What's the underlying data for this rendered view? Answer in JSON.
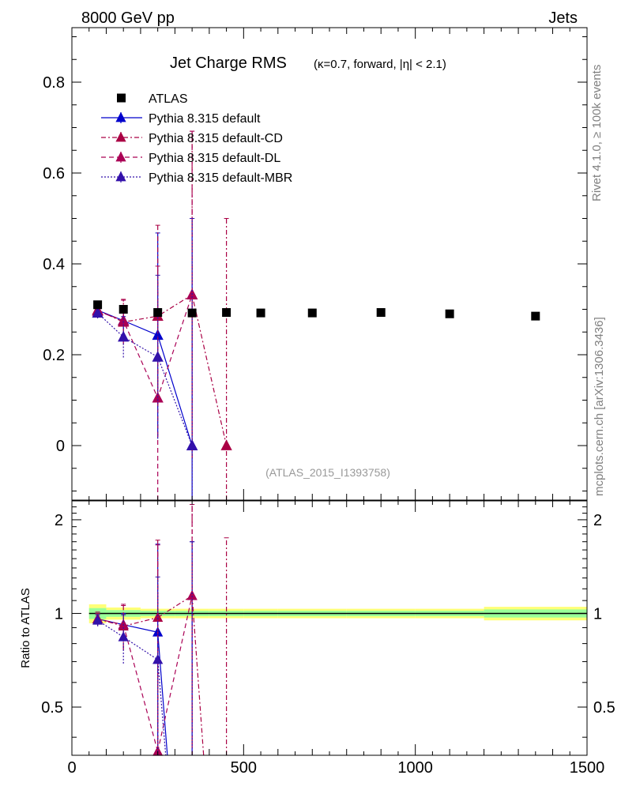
{
  "header": {
    "left": "8000 GeV pp",
    "right": "Jets"
  },
  "side_text": {
    "rivet": "Rivet 4.1.0, ≥ 100k events",
    "mcplots": "mcplots.cern.ch [arXiv:1306.3436]"
  },
  "chart_data": {
    "type": "scatter",
    "title": "Jet Charge RMS",
    "subtitle": "(κ=0.7, forward, |η| < 2.1)",
    "analysis_label": "(ATLAS_2015_I1393758)",
    "xlabel": "",
    "ylabel": "",
    "ratio_ylabel": "Ratio to ATLAS",
    "xlim": [
      0,
      1500
    ],
    "ylim": [
      -0.12,
      0.92
    ],
    "ratio_ylim": [
      0.35,
      2.3
    ],
    "x_ticks": [
      0,
      500,
      1000,
      1500
    ],
    "y_ticks": [
      0,
      0.2,
      0.4,
      0.6,
      0.8
    ],
    "ratio_ticks": [
      0.5,
      1,
      2
    ],
    "ratio_reference": 1,
    "data": {
      "name": "ATLAS",
      "color": "#000000",
      "x": [
        75,
        150,
        250,
        350,
        450,
        550,
        700,
        900,
        1100,
        1350
      ],
      "y": [
        0.31,
        0.3,
        0.293,
        0.292,
        0.293,
        0.292,
        0.292,
        0.293,
        0.29,
        0.285
      ],
      "bin_edges": [
        50,
        100,
        200,
        300,
        400,
        500,
        600,
        800,
        1000,
        1200,
        1500
      ],
      "band_inner": [
        0.04,
        0.025,
        0.02,
        0.02,
        0.02,
        0.02,
        0.02,
        0.02,
        0.02,
        0.03
      ],
      "band_outer": [
        0.07,
        0.045,
        0.035,
        0.035,
        0.035,
        0.035,
        0.035,
        0.035,
        0.035,
        0.05
      ]
    },
    "series": [
      {
        "name": "Pythia 8.315 default",
        "color": "#0000cc",
        "dash": "solid",
        "x": [
          75,
          150,
          250,
          350
        ],
        "y": [
          0.298,
          0.275,
          0.243,
          0.0
        ],
        "yerr": [
          0.01,
          0.02,
          0.225,
          0.5
        ],
        "ratio": [
          0.96,
          0.92,
          0.87,
          0.0
        ],
        "ratio_err": [
          0.04,
          0.08,
          0.8,
          1.7
        ]
      },
      {
        "name": "Pythia 8.315 default-CD",
        "color": "#aa0044",
        "dash": "dashdot",
        "x": [
          75,
          150,
          250,
          350,
          450
        ],
        "y": [
          0.298,
          0.272,
          0.285,
          0.332,
          0.0
        ],
        "yerr": [
          0.012,
          0.05,
          0.2,
          0.36,
          0.5
        ],
        "ratio": [
          0.96,
          0.91,
          0.97,
          1.14,
          0.0
        ],
        "ratio_err": [
          0.04,
          0.15,
          0.75,
          1.1,
          1.75
        ]
      },
      {
        "name": "Pythia 8.315 default-DL",
        "color": "#aa0055",
        "dash": "dashed",
        "x": [
          75,
          150,
          250,
          350
        ],
        "y": [
          0.296,
          0.275,
          0.105,
          0.332
        ],
        "yerr": [
          0.012,
          0.045,
          0.29,
          0.36
        ],
        "ratio": [
          0.96,
          0.92,
          0.36,
          1.14
        ],
        "ratio_err": [
          0.05,
          0.15,
          1.3,
          1.1
        ]
      },
      {
        "name": "Pythia 8.315 default-MBR",
        "color": "#3311aa",
        "dash": "dotted",
        "x": [
          75,
          150,
          250,
          350
        ],
        "y": [
          0.292,
          0.239,
          0.195,
          0.0
        ],
        "yerr": [
          0.012,
          0.045,
          0.18,
          0.5
        ],
        "ratio": [
          0.95,
          0.84,
          0.71,
          0.0
        ],
        "ratio_err": [
          0.04,
          0.15,
          0.6,
          1.7
        ]
      }
    ]
  }
}
